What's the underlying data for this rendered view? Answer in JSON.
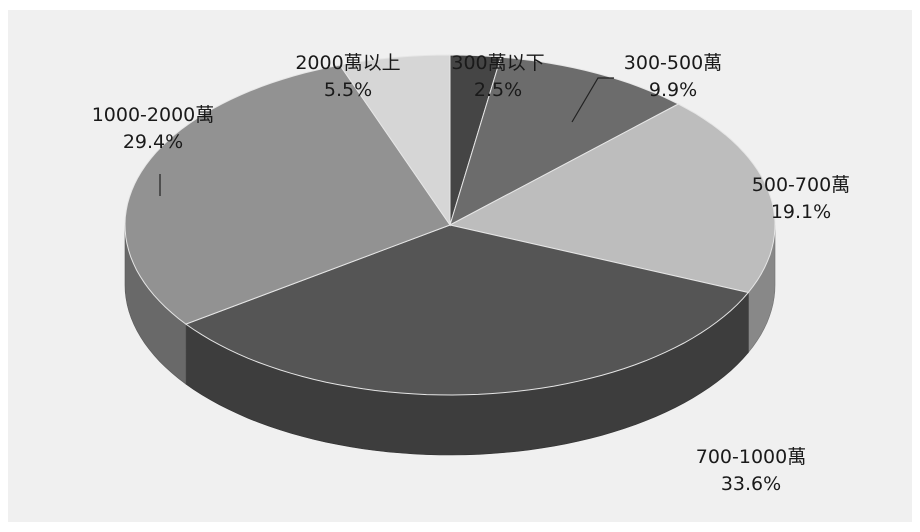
{
  "chart_data": {
    "type": "pie",
    "title": "",
    "categories": [
      "300萬以下",
      "300-500萬",
      "500-700萬",
      "700-1000萬",
      "1000-2000萬",
      "2000萬以上"
    ],
    "values": [
      2.5,
      9.9,
      19.1,
      33.6,
      29.4,
      5.5
    ],
    "value_labels": [
      "2.5%",
      "9.9%",
      "19.1%",
      "33.6%",
      "29.4%",
      "5.5%"
    ],
    "colors": [
      "#454545",
      "#6c6c6c",
      "#bdbdbd",
      "#555555",
      "#929292",
      "#d6d6d6"
    ],
    "style": "3d"
  }
}
